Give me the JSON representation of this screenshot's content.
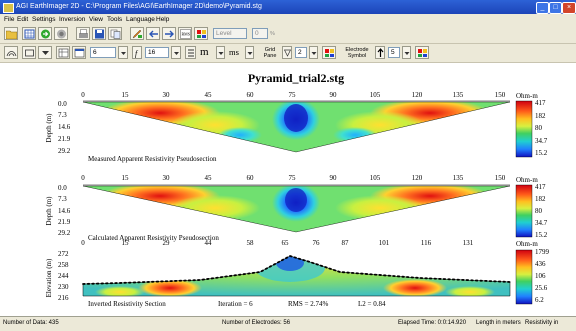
{
  "window": {
    "title": "AGI EarthImager 2D - C:\\Program Files\\AGI\\EarthImager 2D\\demo\\Pyramid.stg",
    "minimize": "_",
    "maximize": "□",
    "close": "×"
  },
  "menu": [
    "File",
    "Edit",
    "Settings",
    "Inversion",
    "View",
    "Tools",
    "Language",
    "Help"
  ],
  "toolbar1": {
    "section_select": "Level",
    "section_value": "0",
    "section_unit": "%"
  },
  "toolbar2": {
    "field1": "6",
    "field2": "16",
    "unit_m": "m",
    "unit_ms": "ms",
    "grid_label": "Grid Pane",
    "grid_value": "2",
    "electrode_label": "Electrode Symbol",
    "electrode_value": "5"
  },
  "plot": {
    "title": "Pyramid_trial2.stg",
    "panels": [
      {
        "y_axis_label": "Depth (m)",
        "x_ticks": [
          "0",
          "15",
          "30",
          "45",
          "60",
          "75",
          "90",
          "105",
          "120",
          "135",
          "150"
        ],
        "y_ticks": [
          "0.0",
          "7.3",
          "14.6",
          "21.9",
          "29.2"
        ],
        "caption": "Measured Apparent Resistivity Pseudosection",
        "colorbar_unit": "Ohm-m",
        "colorbar_ticks": [
          "417",
          "182",
          "80",
          "34.7",
          "15.2"
        ]
      },
      {
        "y_axis_label": "Depth (m)",
        "x_ticks": [
          "0",
          "15",
          "30",
          "45",
          "60",
          "75",
          "90",
          "105",
          "120",
          "135",
          "150"
        ],
        "y_ticks": [
          "0.0",
          "7.3",
          "14.6",
          "21.9",
          "29.2"
        ],
        "caption": "Calculated Apparent Resistivity Pseudosection",
        "colorbar_unit": "Ohm-m",
        "colorbar_ticks": [
          "417",
          "182",
          "80",
          "34.7",
          "15.2"
        ]
      },
      {
        "y_axis_label": "Elevation (m)",
        "x_ticks": [
          "0",
          "15",
          "29",
          "44",
          "58",
          "65",
          "76",
          "87",
          "101",
          "116",
          "131"
        ],
        "y_ticks": [
          "272",
          "258",
          "244",
          "230",
          "216"
        ],
        "caption": "Inverted Resistivity Section",
        "iteration": "Iteration = 6",
        "rms": "RMS = 2.74%",
        "l2": "L2 = 0.84",
        "colorbar_unit": "Ohm-m",
        "colorbar_ticks": [
          "1799",
          "436",
          "106",
          "25.6",
          "6.2"
        ]
      }
    ]
  },
  "status": {
    "data_count": "Number of Data: 435",
    "electrodes": "Number of Electrodes: 56",
    "elapsed": "Elapsed Time: 0:0:14.920",
    "length": "Length in meters",
    "resistivity": "Resistivity in"
  },
  "colors": {
    "titlebar": "#2d62d6",
    "low_resistivity": "#1a1adf",
    "high_resistivity": "#e01010"
  }
}
